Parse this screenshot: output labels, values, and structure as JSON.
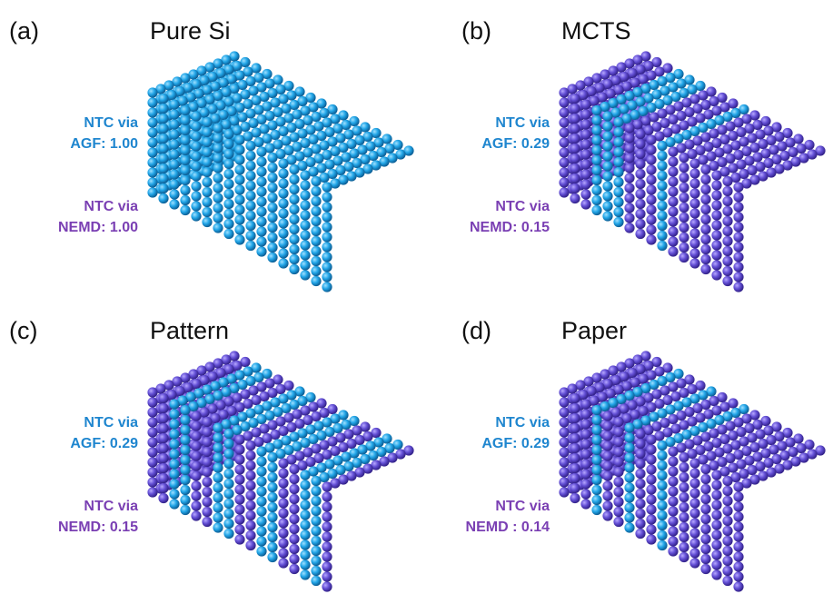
{
  "panels": [
    {
      "label": "(a)",
      "title": "Pure Si",
      "agf": [
        "NTC via",
        "AGF: 1.00"
      ],
      "nemd": [
        "NTC via",
        "NEMD: 1.00"
      ]
    },
    {
      "label": "(b)",
      "title": "MCTS",
      "agf": [
        "NTC via",
        "AGF: 0.29"
      ],
      "nemd": [
        "NTC via",
        "NEMD: 0.15"
      ]
    },
    {
      "label": "(c)",
      "title": "Pattern",
      "agf": [
        "NTC via",
        "AGF: 0.29"
      ],
      "nemd": [
        "NTC via",
        "NEMD: 0.15"
      ]
    },
    {
      "label": "(d)",
      "title": "Paper",
      "agf": [
        "NTC via",
        "AGF: 0.29"
      ],
      "nemd": [
        "NTC via",
        "NEMD : 0.14"
      ]
    }
  ]
}
